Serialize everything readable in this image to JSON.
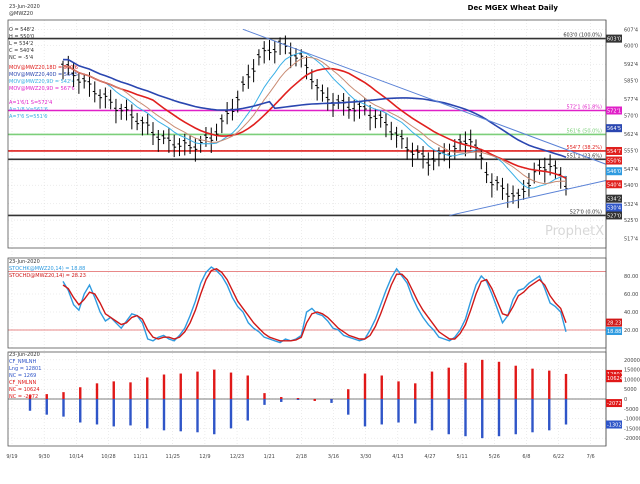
{
  "chart_data": {
    "type": "candlestick",
    "title": "Dec MGEX Wheat Daily",
    "watermark": "ProphetX",
    "colors": {
      "grid": "#cfcfcf",
      "frame": "#555555",
      "price": "#000000",
      "ma_red": "#e0201e",
      "ma_brown": "#c98c74",
      "ma_blue": "#2a46b0",
      "ma_light": "#3bb0e6",
      "magenta": "#e020c8",
      "green": "#7ccf7a",
      "trend": "#5a82d6",
      "stoch_k": "#2f9be0",
      "stoch_d": "#d01818",
      "bar_pos": "#e01818",
      "bar_neg": "#2f55c8"
    },
    "x_labels": [
      "9/19",
      "9/30",
      "10/14",
      "10/28",
      "11/11",
      "11/25",
      "12/9",
      "12/23",
      "1/21",
      "2/18",
      "3/16",
      "3/30",
      "4/13",
      "4/27",
      "5/11",
      "5/26",
      "6/8",
      "6/22",
      "7/6"
    ],
    "price_panel": {
      "date": "23-Jun-2020",
      "symbol": "@MWZ20",
      "ohlc": {
        "O": "548'2",
        "H": "550'0",
        "L": "534'2",
        "C": "540'4",
        "NC": "-5'4"
      },
      "ma_legend": [
        "MOV@MWZ20,18D = 550'6",
        "MOV@MWZ20,40D = 564'5",
        "MOV@MWZ20,9D = 542'4",
        "MOV@MWZ20,9D = 567'6"
      ],
      "line_legend": [
        "A=1'6/1 S=572'4",
        "A=1/8 V=561'6",
        "A=7'6 S=551'6"
      ],
      "y_ticks": [
        {
          "v": 607,
          "l": "607'4"
        },
        {
          "v": 600,
          "l": "600'0"
        },
        {
          "v": 592,
          "l": "592'4"
        },
        {
          "v": 585,
          "l": "585'0"
        },
        {
          "v": 577,
          "l": "577'4"
        },
        {
          "v": 570,
          "l": "570'0"
        },
        {
          "v": 562,
          "l": "562'4"
        },
        {
          "v": 555,
          "l": "555'0"
        },
        {
          "v": 547,
          "l": "547'4"
        },
        {
          "v": 540,
          "l": "540'0"
        },
        {
          "v": 532,
          "l": "532'4"
        },
        {
          "v": 525,
          "l": "525'0"
        },
        {
          "v": 517,
          "l": "517'4"
        }
      ],
      "y_range": [
        513,
        611
      ],
      "hlines": [
        {
          "v": 603.0,
          "label": "603'0 (100.0%)",
          "tag": "603'0",
          "color": "#333333"
        },
        {
          "v": 572.1,
          "label": "572'1 (61.8%)",
          "tag": "572'1",
          "color": "#e020c8"
        },
        {
          "v": 561.8,
          "label": "561'6 (50.0%)",
          "tag": "",
          "color": "#7ccf7a"
        },
        {
          "v": 554.7,
          "label": "554'7 (38.2%)",
          "tag": "554'7",
          "color": "#e0201e"
        },
        {
          "v": 551.1,
          "label": "551'1 (23.6%)",
          "tag": "",
          "color": "#333333"
        },
        {
          "v": 527.0,
          "label": "527'0 (0.0%)",
          "tag": "527'0",
          "color": "#333333"
        }
      ],
      "value_tags": [
        {
          "v": 564.5,
          "label": "564'5",
          "color": "#2a46b0"
        },
        {
          "v": 550.6,
          "label": "550'6",
          "color": "#e0201e"
        },
        {
          "v": 546.0,
          "label": "546'0",
          "color": "#2f9be0"
        },
        {
          "v": 540.4,
          "label": "540'4",
          "color": "#e0201e"
        },
        {
          "v": 534.2,
          "label": "534'2",
          "color": "#333333"
        },
        {
          "v": 530.4,
          "label": "530'4",
          "color": "#2f55c8"
        }
      ]
    },
    "stoch_panel": {
      "date": "23-Jun-2020",
      "legend": [
        "STOCHK@MWZ20,14) = 18.88",
        "STOCHD@MWZ20,14) = 28.23"
      ],
      "y_ticks": [
        80,
        60,
        40,
        20
      ],
      "y_range": [
        0,
        100
      ],
      "hlines": [
        85,
        20
      ],
      "tags": [
        {
          "v": 28.23,
          "label": "28.23",
          "color": "#d01818"
        },
        {
          "v": 18.88,
          "label": "18.88",
          "color": "#2f9be0"
        }
      ],
      "k": [
        74,
        64,
        48,
        42,
        60,
        70,
        56,
        40,
        30,
        34,
        28,
        22,
        30,
        38,
        36,
        28,
        10,
        8,
        12,
        14,
        10,
        8,
        14,
        22,
        36,
        52,
        72,
        84,
        90,
        86,
        80,
        70,
        56,
        46,
        40,
        28,
        22,
        18,
        12,
        10,
        8,
        6,
        10,
        8,
        10,
        14,
        40,
        44,
        38,
        36,
        30,
        22,
        20,
        14,
        12,
        10,
        8,
        10,
        20,
        32,
        48,
        64,
        78,
        88,
        80,
        72,
        56,
        44,
        34,
        26,
        20,
        12,
        10,
        8,
        12,
        20,
        32,
        52,
        70,
        80,
        74,
        60,
        44,
        28,
        36,
        54,
        64,
        66,
        72,
        76,
        80,
        66,
        50,
        46,
        40,
        18
      ],
      "d": [
        70,
        66,
        56,
        48,
        54,
        62,
        60,
        50,
        38,
        34,
        30,
        26,
        28,
        34,
        36,
        32,
        20,
        12,
        10,
        12,
        12,
        10,
        12,
        18,
        28,
        42,
        60,
        76,
        86,
        88,
        84,
        76,
        64,
        52,
        44,
        36,
        28,
        22,
        16,
        12,
        10,
        8,
        8,
        8,
        9,
        12,
        28,
        38,
        40,
        38,
        34,
        28,
        22,
        18,
        14,
        12,
        10,
        10,
        14,
        24,
        38,
        54,
        70,
        82,
        82,
        76,
        64,
        52,
        42,
        34,
        26,
        18,
        14,
        10,
        10,
        16,
        26,
        42,
        60,
        74,
        76,
        66,
        52,
        38,
        36,
        46,
        58,
        62,
        68,
        72,
        76,
        70,
        58,
        50,
        44,
        28
      ]
    },
    "cot_panel": {
      "date": "23-Jun-2020",
      "legend": [
        "CF_NMLNH",
        "Lng = 12801",
        "NC = 1269",
        "CF_NMLNN",
        "NC = 10624",
        "NC = -2072"
      ],
      "y_ticks": [
        {
          "v": 20000,
          "l": "20000"
        },
        {
          "v": 15000,
          "l": "15000"
        },
        {
          "v": 10000,
          "l": "10000"
        },
        {
          "v": 5000,
          "l": "5000"
        },
        {
          "v": 0,
          "l": "0"
        },
        {
          "v": -5000,
          "l": "-5000"
        },
        {
          "v": -10000,
          "l": "-10000"
        },
        {
          "v": -15000,
          "l": "-15000"
        },
        {
          "v": -20000,
          "l": "-20000"
        }
      ],
      "y_range": [
        -24000,
        24000
      ],
      "tags": [
        {
          "v": 12801,
          "label": "12801",
          "color": "#e01818"
        },
        {
          "v": 10624,
          "label": "10624",
          "color": "#e01818"
        },
        {
          "v": -2072,
          "label": "-2072",
          "color": "#e01818"
        },
        {
          "v": -13024,
          "label": "-13024",
          "color": "#2f55c8"
        }
      ],
      "long": [
        2000,
        2500,
        3500,
        6000,
        8000,
        9000,
        8500,
        11000,
        12500,
        13000,
        14000,
        15000,
        13500,
        12000,
        3000,
        1000,
        500,
        -1000,
        -500,
        5000,
        13000,
        12000,
        9000,
        8000,
        14000,
        16000,
        18500,
        20000,
        19000,
        17000,
        15500,
        14500,
        12801
      ],
      "short": [
        -6000,
        -8000,
        -9000,
        -12000,
        -13000,
        -14000,
        -13500,
        -15000,
        -16000,
        -16500,
        -17000,
        -18000,
        -15000,
        -11000,
        -3000,
        -1500,
        -500,
        0,
        -2000,
        -8000,
        -14000,
        -13000,
        -12000,
        -12500,
        -16000,
        -18000,
        -19000,
        -20000,
        -19000,
        -18000,
        -17000,
        -16000,
        -13024
      ]
    }
  }
}
